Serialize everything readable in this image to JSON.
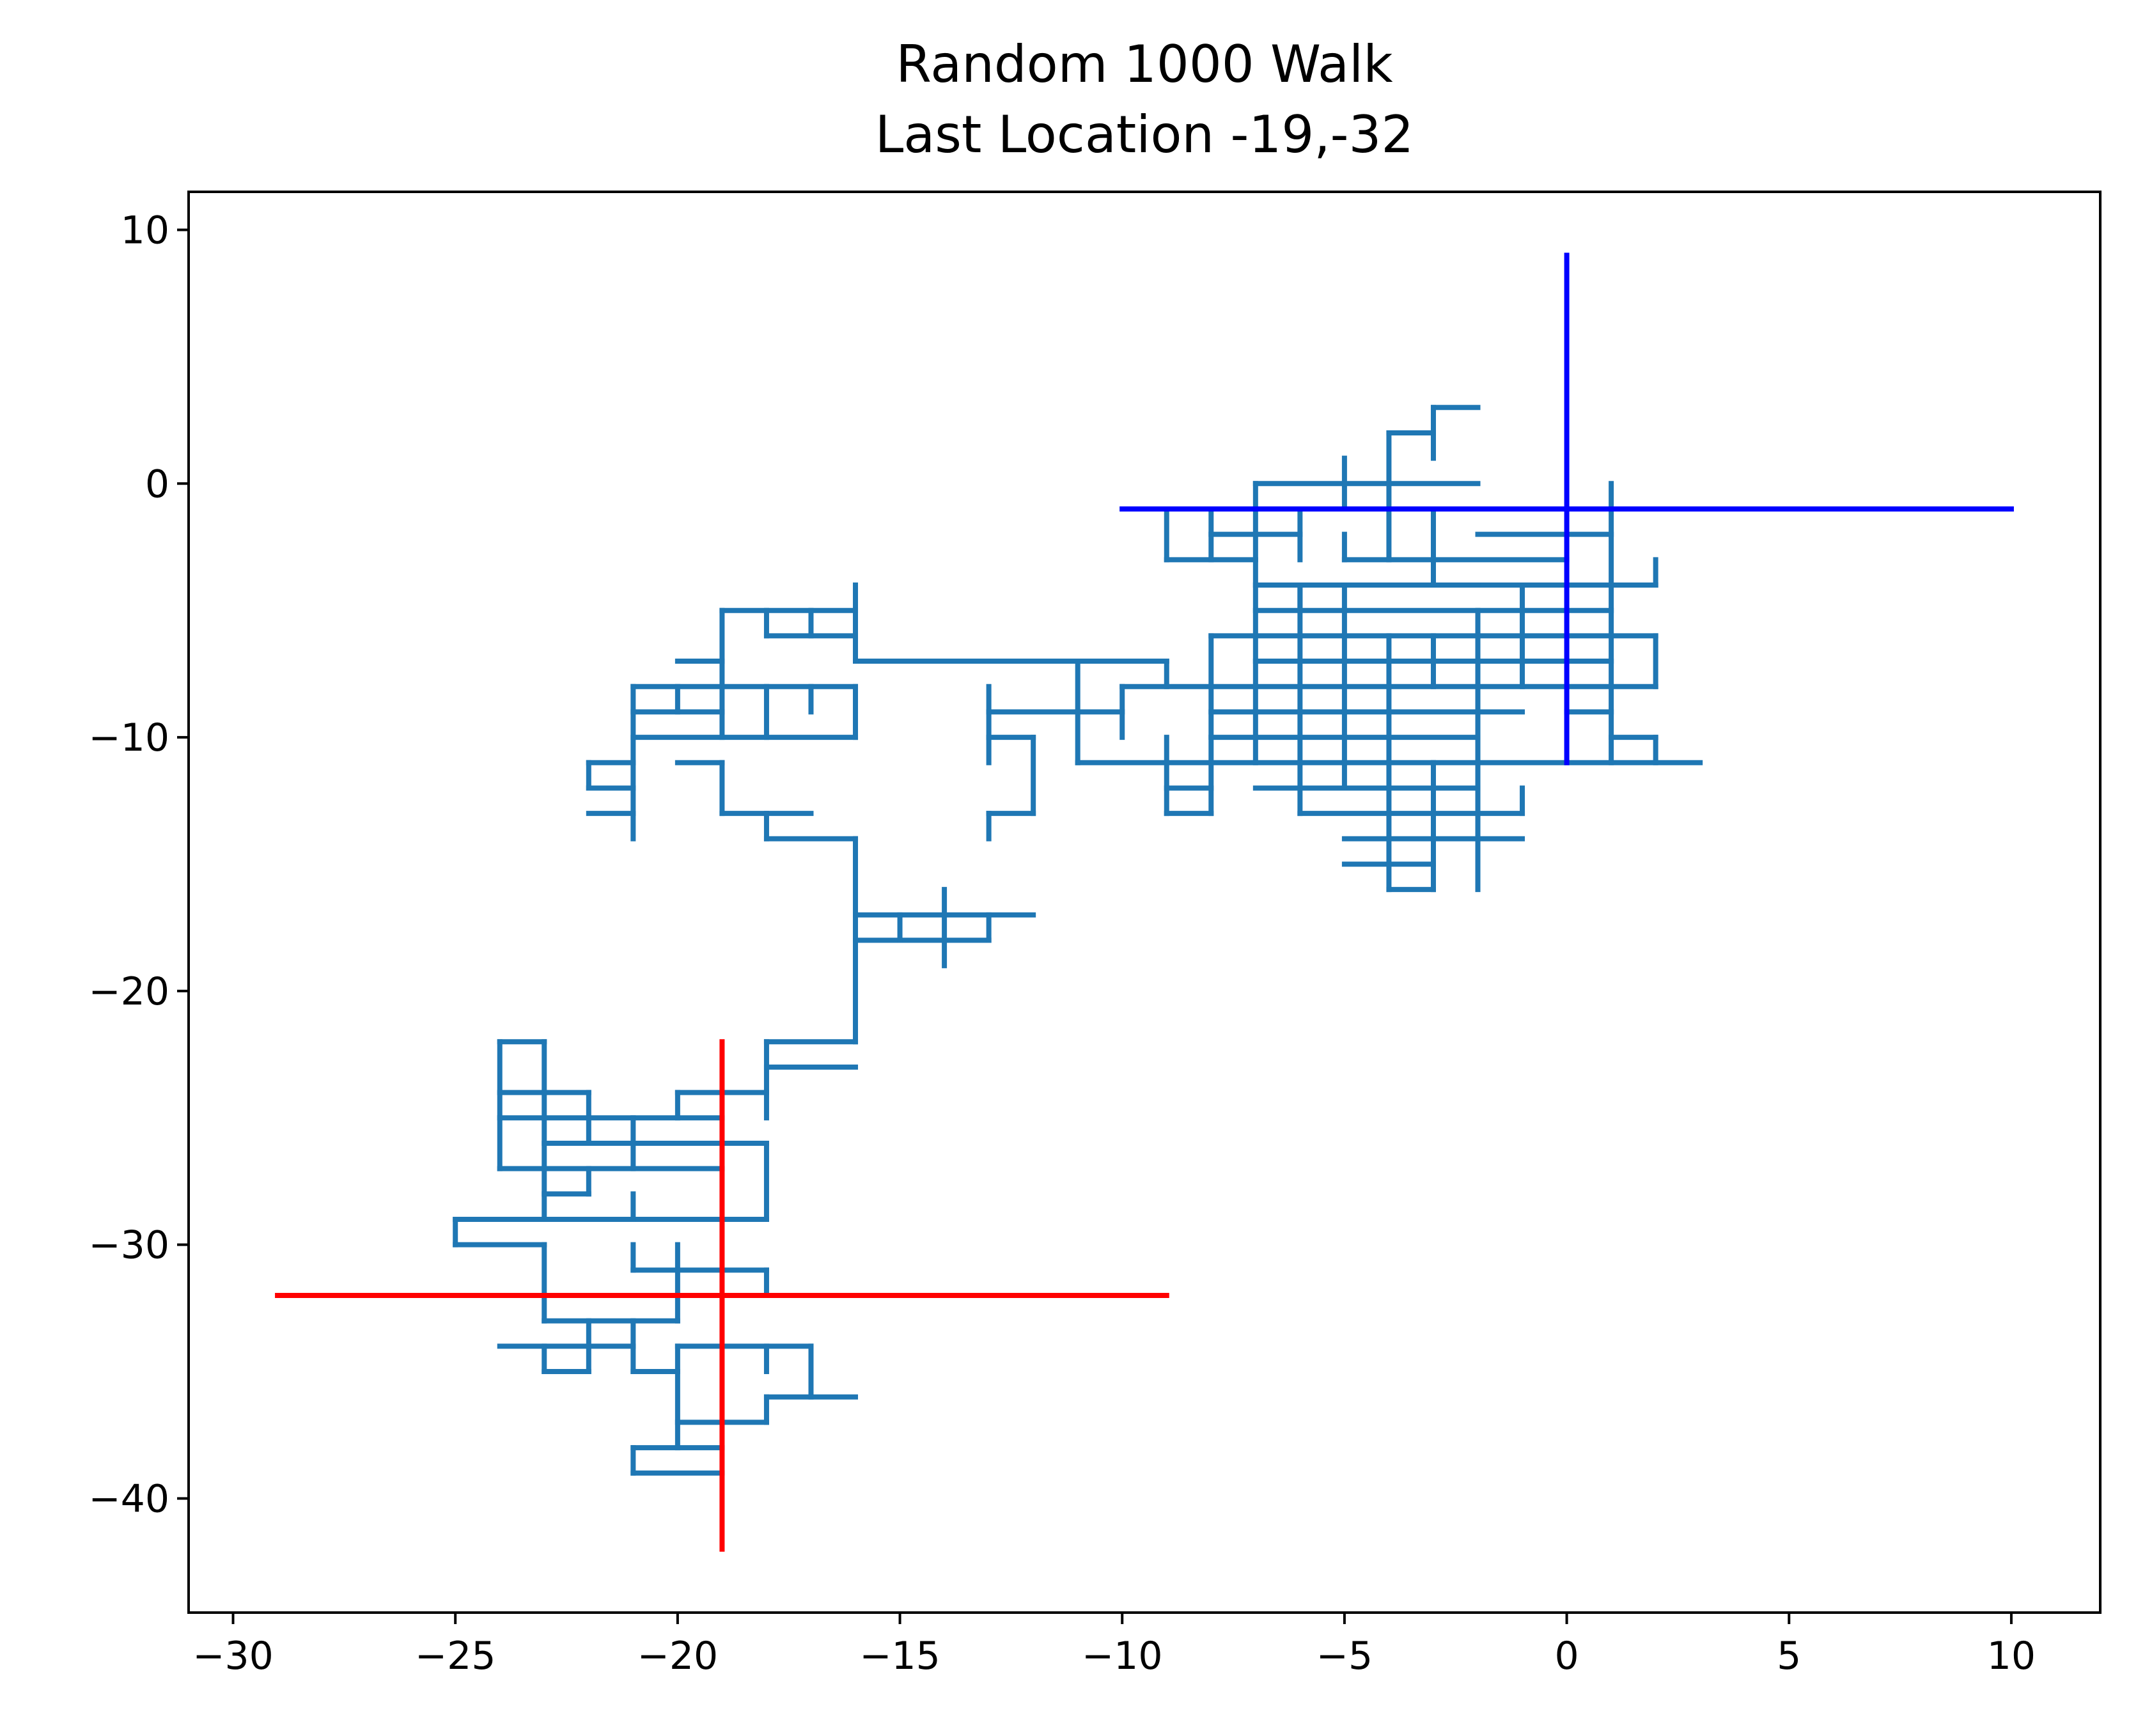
{
  "chart_data": {
    "type": "line",
    "title": "Random 1000 Walk",
    "subtitle": "Last Location -19,-32",
    "xlabel": "",
    "ylabel": "",
    "xlim": [
      -31,
      12
    ],
    "ylim": [
      -44.5,
      11.5
    ],
    "x_ticks": [
      -30,
      -25,
      -20,
      -15,
      -10,
      -5,
      0,
      5,
      10
    ],
    "x_tick_labels": [
      "−30",
      "−25",
      "−20",
      "−15",
      "−10",
      "−5",
      "0",
      "5",
      "10"
    ],
    "y_ticks": [
      10,
      0,
      -10,
      -20,
      -30,
      -40
    ],
    "y_tick_labels": [
      "10",
      "0",
      "−10",
      "−20",
      "−30",
      "−40"
    ],
    "grid": false,
    "colors": {
      "walk": "#1f77b4",
      "start_marker": "#0000ff",
      "end_marker": "#ff0000",
      "axes": "#000000"
    },
    "walk_segments": [
      [
        -2,
        3,
        -3,
        3
      ],
      [
        -3,
        3,
        -3,
        1
      ],
      [
        -3,
        2,
        -4,
        2
      ],
      [
        -4,
        2,
        -4,
        0
      ],
      [
        -5,
        1,
        -5,
        -1
      ],
      [
        -2,
        0,
        -7,
        0
      ],
      [
        -7,
        0,
        -7,
        -11
      ],
      [
        -1,
        -1,
        -10,
        -1
      ],
      [
        -9,
        -1,
        -9,
        -3
      ],
      [
        -9,
        -3,
        -7,
        -3
      ],
      [
        -8,
        -1,
        -8,
        -3
      ],
      [
        -6,
        -1,
        -6,
        -3
      ],
      [
        -6,
        -2,
        -8,
        -2
      ],
      [
        -4,
        0,
        -4,
        -3
      ],
      [
        -5,
        -2,
        -5,
        -3
      ],
      [
        -5,
        -3,
        -4,
        -3
      ],
      [
        -4,
        -3,
        0,
        -3
      ],
      [
        -4,
        -4,
        1,
        -4
      ],
      [
        -3,
        -1,
        -3,
        -4
      ],
      [
        -2,
        -2,
        1,
        -2
      ],
      [
        1,
        0,
        1,
        -11
      ],
      [
        1,
        -4,
        2,
        -4
      ],
      [
        2,
        -3,
        2,
        -4
      ],
      [
        -7,
        -4,
        -2,
        -4
      ],
      [
        -7,
        -5,
        1,
        -5
      ],
      [
        -6,
        -4,
        -6,
        -5
      ],
      [
        -5,
        -4,
        -5,
        -5
      ],
      [
        -8,
        -6,
        2,
        -6
      ],
      [
        -8,
        -6,
        -8,
        -13
      ],
      [
        2,
        -6,
        2,
        -8
      ],
      [
        -7,
        -7,
        1,
        -7
      ],
      [
        -10,
        -8,
        2,
        -8
      ],
      [
        -8,
        -9,
        -1,
        -9
      ],
      [
        0,
        -9,
        1,
        -9
      ],
      [
        -8,
        -10,
        -2,
        -10
      ],
      [
        1,
        -10,
        2,
        -10
      ],
      [
        2,
        -10,
        2,
        -11
      ],
      [
        -11,
        -11,
        3,
        -11
      ],
      [
        -7,
        -12,
        -2,
        -12
      ],
      [
        -6,
        -13,
        -1,
        -13
      ],
      [
        -1,
        -12,
        -1,
        -13
      ],
      [
        -5,
        -14,
        -2,
        -14
      ],
      [
        -1,
        -14,
        -2,
        -14
      ],
      [
        -5,
        -15,
        -3,
        -15
      ],
      [
        -4,
        -16,
        -3,
        -16
      ],
      [
        -6,
        -4,
        -6,
        -13
      ],
      [
        -5,
        -5,
        -5,
        -12
      ],
      [
        -4,
        -6,
        -4,
        -16
      ],
      [
        -3,
        -11,
        -3,
        -16
      ],
      [
        -2,
        -5,
        -2,
        -16
      ],
      [
        -1,
        -4,
        -1,
        -8
      ],
      [
        -3,
        -6,
        -3,
        -8
      ],
      [
        -10,
        -9,
        -13,
        -9
      ],
      [
        -13,
        -8,
        -13,
        -11
      ],
      [
        -13,
        -10,
        -12,
        -10
      ],
      [
        -12,
        -10,
        -12,
        -13
      ],
      [
        -12,
        -13,
        -13,
        -13
      ],
      [
        -13,
        -13,
        -13,
        -14
      ],
      [
        -11,
        -7,
        -11,
        -11
      ],
      [
        -10,
        -8,
        -10,
        -10
      ],
      [
        -9,
        -10,
        -9,
        -13
      ],
      [
        -9,
        -13,
        -8,
        -13
      ],
      [
        -9,
        -12,
        -8,
        -12
      ],
      [
        -9,
        -7,
        -16,
        -7
      ],
      [
        -9,
        -7,
        -9,
        -8
      ],
      [
        -16,
        -4,
        -16,
        -7
      ],
      [
        -16,
        -5,
        -19,
        -5
      ],
      [
        -16,
        -6,
        -18,
        -6
      ],
      [
        -17,
        -5,
        -17,
        -6
      ],
      [
        -18,
        -5,
        -18,
        -6
      ],
      [
        -19,
        -5,
        -19,
        -10
      ],
      [
        -19,
        -7,
        -20,
        -7
      ],
      [
        -16,
        -8,
        -21,
        -8
      ],
      [
        -16,
        -8,
        -16,
        -10
      ],
      [
        -16,
        -10,
        -21,
        -10
      ],
      [
        -21,
        -9,
        -19,
        -9
      ],
      [
        -21,
        -8,
        -21,
        -14
      ],
      [
        -21,
        -11,
        -22,
        -11
      ],
      [
        -22,
        -11,
        -22,
        -12
      ],
      [
        -22,
        -12,
        -21,
        -12
      ],
      [
        -22,
        -13,
        -21,
        -13
      ],
      [
        -18,
        -8,
        -18,
        -10
      ],
      [
        -17,
        -8,
        -17,
        -9
      ],
      [
        -20,
        -8,
        -20,
        -9
      ],
      [
        -19,
        -11,
        -20,
        -11
      ],
      [
        -19,
        -11,
        -19,
        -13
      ],
      [
        -19,
        -13,
        -17,
        -13
      ],
      [
        -18,
        -13,
        -18,
        -14
      ],
      [
        -18,
        -14,
        -16,
        -14
      ],
      [
        -16,
        -14,
        -16,
        -22
      ],
      [
        -16,
        -17,
        -12,
        -17
      ],
      [
        -16,
        -18,
        -13,
        -18
      ],
      [
        -13,
        -17,
        -13,
        -18
      ],
      [
        -14,
        -16,
        -14,
        -19
      ],
      [
        -15,
        -17,
        -15,
        -18
      ],
      [
        -16,
        -22,
        -18,
        -22
      ],
      [
        -18,
        -22,
        -18,
        -25
      ],
      [
        -18,
        -23,
        -16,
        -23
      ],
      [
        -18,
        -24,
        -20,
        -24
      ],
      [
        -20,
        -24,
        -20,
        -25
      ],
      [
        -18,
        -26,
        -18,
        -29
      ],
      [
        -18,
        -26,
        -23,
        -26
      ],
      [
        -18,
        -29,
        -23,
        -29
      ],
      [
        -23,
        -22,
        -24,
        -22
      ],
      [
        -23,
        -22,
        -23,
        -29
      ],
      [
        -24,
        -22,
        -24,
        -27
      ],
      [
        -24,
        -24,
        -22,
        -24
      ],
      [
        -22,
        -24,
        -22,
        -26
      ],
      [
        -24,
        -25,
        -19,
        -25
      ],
      [
        -21,
        -25,
        -21,
        -27
      ],
      [
        -24,
        -27,
        -19,
        -27
      ],
      [
        -22,
        -27,
        -22,
        -28
      ],
      [
        -22,
        -28,
        -23,
        -28
      ],
      [
        -21,
        -28,
        -21,
        -29
      ],
      [
        -21,
        -29,
        -25,
        -29
      ],
      [
        -25,
        -29,
        -25,
        -30
      ],
      [
        -25,
        -30,
        -23,
        -30
      ],
      [
        -23,
        -30,
        -23,
        -33
      ],
      [
        -23,
        -33,
        -20,
        -33
      ],
      [
        -20,
        -30,
        -20,
        -33
      ],
      [
        -21,
        -30,
        -21,
        -31
      ],
      [
        -21,
        -31,
        -18,
        -31
      ],
      [
        -18,
        -31,
        -18,
        -32
      ],
      [
        -24,
        -34,
        -21,
        -34
      ],
      [
        -21,
        -33,
        -21,
        -35
      ],
      [
        -21,
        -35,
        -20,
        -35
      ],
      [
        -22,
        -33,
        -22,
        -35
      ],
      [
        -22,
        -35,
        -23,
        -35
      ],
      [
        -23,
        -34,
        -23,
        -35
      ],
      [
        -20,
        -34,
        -17,
        -34
      ],
      [
        -20,
        -34,
        -20,
        -38
      ],
      [
        -18,
        -34,
        -18,
        -35
      ],
      [
        -17,
        -34,
        -17,
        -36
      ],
      [
        -16,
        -36,
        -18,
        -36
      ],
      [
        -18,
        -36,
        -18,
        -37
      ],
      [
        -18,
        -37,
        -20,
        -37
      ],
      [
        -21,
        -38,
        -19,
        -38
      ],
      [
        -21,
        -38,
        -21,
        -39
      ],
      [
        -21,
        -39,
        -19,
        -39
      ]
    ],
    "start_point": [
      0,
      -1
    ],
    "start_marker": {
      "x": [
        -10,
        10
      ],
      "y": [
        -11,
        9
      ]
    },
    "end_point": [
      -19,
      -32
    ],
    "end_marker": {
      "x": [
        -29,
        -9
      ],
      "y": [
        -42,
        -22
      ]
    }
  }
}
